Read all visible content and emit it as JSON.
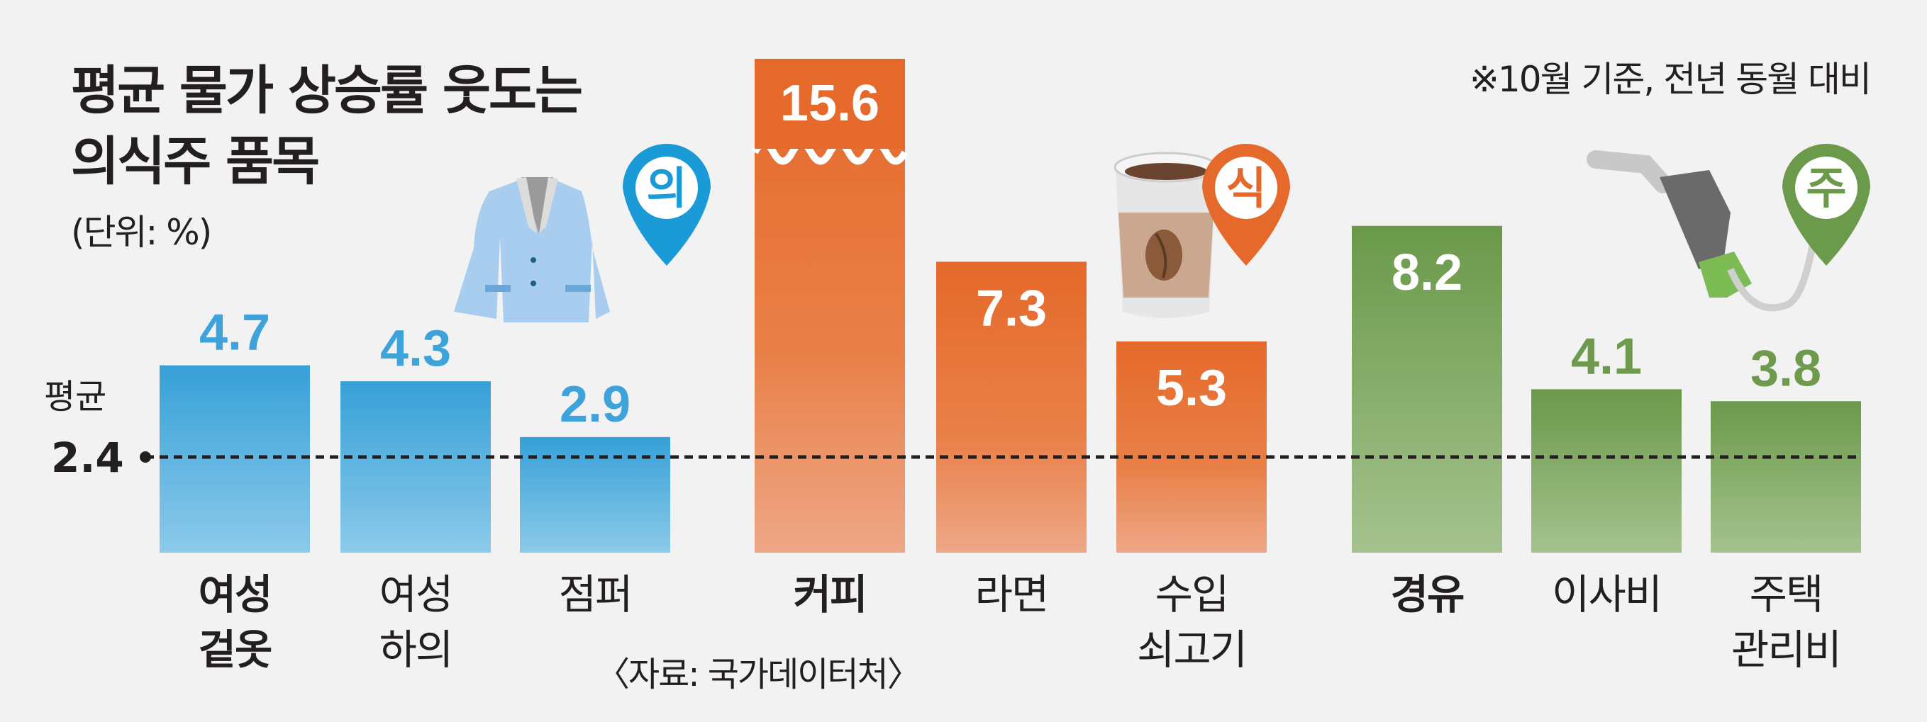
{
  "title_lines": [
    "평균 물가 상승률 웃도는",
    "의식주 품목"
  ],
  "unit": "(단위: %)",
  "note": "※10월 기준, 전년 동월 대비",
  "source": "〈자료: 국가데이터처〉",
  "average": {
    "label": "평균",
    "value": "2.4"
  },
  "group_badges": [
    {
      "text": "의",
      "color": "#1a9ad6",
      "icon": "jacket-icon"
    },
    {
      "text": "식",
      "color": "#e5692a",
      "icon": "coffee-cup-icon"
    },
    {
      "text": "주",
      "color": "#6a9a4a",
      "icon": "fuel-nozzle-icon"
    }
  ],
  "colors": {
    "clothing": "#3ea3da",
    "food": "#e56a30",
    "housing": "#6e9a4e",
    "text": "#231f20"
  },
  "chart_data": {
    "type": "bar",
    "title": "평균 물가 상승률 웃도는 의식주 품목",
    "ylabel": "단위: %",
    "xlabel": "",
    "reference_line": {
      "label": "평균",
      "value": 2.4
    },
    "categories": [
      "여성 겉옷",
      "여성 하의",
      "점퍼",
      "커피",
      "라면",
      "수입 쇠고기",
      "경유",
      "이사비",
      "주택 관리비"
    ],
    "category_lines": [
      [
        "여성",
        "겉옷"
      ],
      [
        "여성",
        "하의"
      ],
      [
        "점퍼"
      ],
      [
        "커피"
      ],
      [
        "라면"
      ],
      [
        "수입",
        "쇠고기"
      ],
      [
        "경유"
      ],
      [
        "이사비"
      ],
      [
        "주택",
        "관리비"
      ]
    ],
    "bold_categories": [
      "여성 겉옷",
      "커피",
      "경유"
    ],
    "values": [
      4.7,
      4.3,
      2.9,
      15.6,
      7.3,
      5.3,
      8.2,
      4.1,
      3.8
    ],
    "value_labels": [
      "4.7",
      "4.3",
      "2.9",
      "15.6",
      "7.3",
      "5.3",
      "8.2",
      "4.1",
      "3.8"
    ],
    "groups": [
      "의",
      "의",
      "의",
      "식",
      "식",
      "식",
      "주",
      "주",
      "주"
    ],
    "broken_axis_values": [
      15.6
    ],
    "ylim": [
      0,
      9
    ]
  }
}
